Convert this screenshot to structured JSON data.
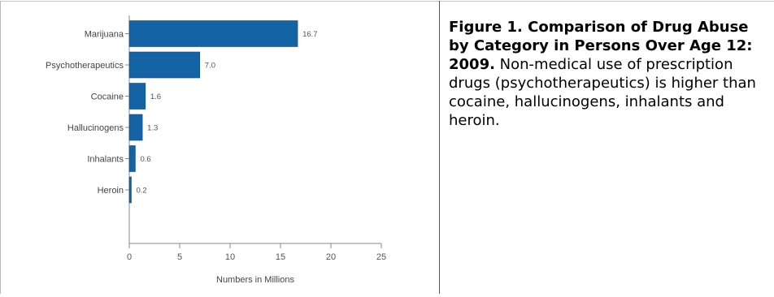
{
  "chart_data": {
    "type": "bar",
    "orientation": "horizontal",
    "categories": [
      "Marijuana",
      "Psychotherapeutics",
      "Cocaine",
      "Hallucinogens",
      "Inhalants",
      "Heroin"
    ],
    "values": [
      16.7,
      7.0,
      1.6,
      1.3,
      0.6,
      0.2
    ],
    "value_labels": [
      "16.7",
      "7.0",
      "1.6",
      "1.3",
      "0.6",
      "0.2"
    ],
    "xlabel": "Numbers in Millions",
    "xlim": [
      0,
      25
    ],
    "xticks": [
      "0",
      "5",
      "10",
      "15",
      "20",
      "25"
    ],
    "grid": false,
    "legend": "none",
    "bar_color": "#1464a5"
  },
  "caption": {
    "title": "Figure 1. Comparison of Drug Abuse by Category in Persons Over Age 12: 2009.",
    "text": "Non-medical use of prescription drugs (psychotherapeutics) is higher than cocaine, hallucinogens, inhalants and heroin."
  }
}
